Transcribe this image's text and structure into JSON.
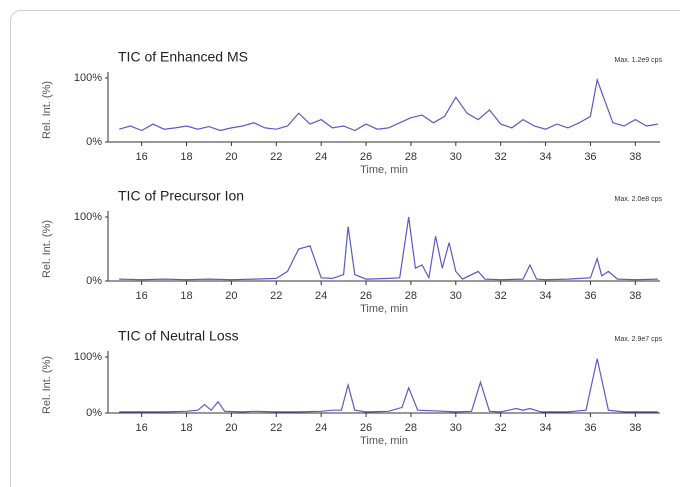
{
  "chart_data": [
    {
      "type": "line",
      "title": "TIC of Enhanced MS",
      "annotation": "Max. 1.2e9 cps",
      "ylabel": "Rel. Int. (%)",
      "xlabel": "Time, min",
      "x": [
        15,
        15.5,
        16,
        16.5,
        17,
        17.5,
        18,
        18.5,
        19,
        19.5,
        20,
        20.5,
        21,
        21.5,
        22,
        22.5,
        23,
        23.5,
        24,
        24.5,
        25,
        25.5,
        26,
        26.5,
        27,
        27.5,
        28,
        28.5,
        29,
        29.5,
        30,
        30.5,
        31,
        31.5,
        32,
        32.5,
        33,
        33.5,
        34,
        34.5,
        35,
        35.5,
        36,
        36.3,
        37,
        37.5,
        38,
        38.5,
        39
      ],
      "series": [
        {
          "color": "#5a5ac8",
          "values": [
            20,
            25,
            18,
            28,
            20,
            22,
            25,
            20,
            24,
            18,
            22,
            25,
            30,
            22,
            20,
            25,
            45,
            28,
            35,
            22,
            25,
            18,
            28,
            20,
            22,
            30,
            38,
            42,
            30,
            40,
            70,
            45,
            35,
            50,
            28,
            22,
            35,
            25,
            20,
            28,
            22,
            30,
            40,
            97,
            30,
            25,
            35,
            25,
            28
          ]
        }
      ],
      "xlim": [
        14.5,
        39.1
      ],
      "ylim": [
        0,
        100
      ],
      "xticks": [
        16,
        18,
        20,
        22,
        24,
        26,
        28,
        30,
        32,
        34,
        36,
        38
      ],
      "yticks": [
        {
          "value": 0,
          "label": "0%"
        },
        {
          "value": 100,
          "label": "100%"
        }
      ]
    },
    {
      "type": "line",
      "title": "TIC of Precursor Ion",
      "annotation": "Max. 2.0e8 cps",
      "ylabel": "Rel. Int. (%)",
      "xlabel": "Time, min",
      "x": [
        15,
        16,
        17,
        18,
        19,
        20,
        21,
        22,
        22.5,
        23,
        23.5,
        24,
        24.5,
        25,
        25.2,
        25.5,
        26,
        27,
        27.5,
        27.9,
        28.2,
        28.5,
        28.8,
        29.1,
        29.4,
        29.7,
        30,
        30.3,
        31,
        31.3,
        32,
        33,
        33.3,
        33.6,
        34,
        35,
        36,
        36.3,
        36.5,
        36.8,
        37.2,
        38,
        39
      ],
      "series": [
        {
          "color": "#5a5ac8",
          "values": [
            3,
            2,
            3,
            2,
            3,
            2,
            3,
            4,
            15,
            50,
            55,
            5,
            4,
            10,
            85,
            10,
            3,
            4,
            5,
            100,
            20,
            25,
            5,
            70,
            20,
            60,
            15,
            3,
            15,
            3,
            2,
            3,
            25,
            3,
            2,
            3,
            5,
            35,
            8,
            15,
            3,
            2,
            3
          ]
        }
      ],
      "xlim": [
        14.5,
        39.1
      ],
      "ylim": [
        0,
        100
      ],
      "xticks": [
        16,
        18,
        20,
        22,
        24,
        26,
        28,
        30,
        32,
        34,
        36,
        38
      ],
      "yticks": [
        {
          "value": 0,
          "label": "0%"
        },
        {
          "value": 100,
          "label": "100%"
        }
      ]
    },
    {
      "type": "line",
      "title": "TIC of Neutral Loss",
      "annotation": "Max. 2.9e7 cps",
      "ylabel": "Rel. Int. (%)",
      "xlabel": "Time, min",
      "x": [
        15,
        16,
        17,
        18,
        18.5,
        18.8,
        19.1,
        19.4,
        19.7,
        20.5,
        21,
        22,
        23,
        24,
        24.5,
        24.9,
        25.2,
        25.5,
        26,
        27,
        27.6,
        27.9,
        28.3,
        29,
        30,
        30.7,
        31.1,
        31.5,
        32,
        32.7,
        33,
        33.3,
        33.8,
        35,
        35.8,
        36.3,
        36.8,
        37.5,
        38,
        39
      ],
      "series": [
        {
          "color": "#5a5ac8",
          "values": [
            2,
            2,
            2,
            3,
            5,
            15,
            5,
            20,
            3,
            2,
            3,
            2,
            2,
            3,
            5,
            5,
            50,
            5,
            2,
            3,
            10,
            45,
            5,
            4,
            2,
            3,
            55,
            3,
            2,
            8,
            5,
            8,
            2,
            2,
            5,
            97,
            5,
            2,
            2,
            2
          ]
        }
      ],
      "xlim": [
        14.5,
        39.1
      ],
      "ylim": [
        0,
        100
      ],
      "xticks": [
        16,
        18,
        20,
        22,
        24,
        26,
        28,
        30,
        32,
        34,
        36,
        38
      ],
      "yticks": [
        {
          "value": 0,
          "label": "0%"
        },
        {
          "value": 100,
          "label": "100%"
        }
      ]
    }
  ]
}
